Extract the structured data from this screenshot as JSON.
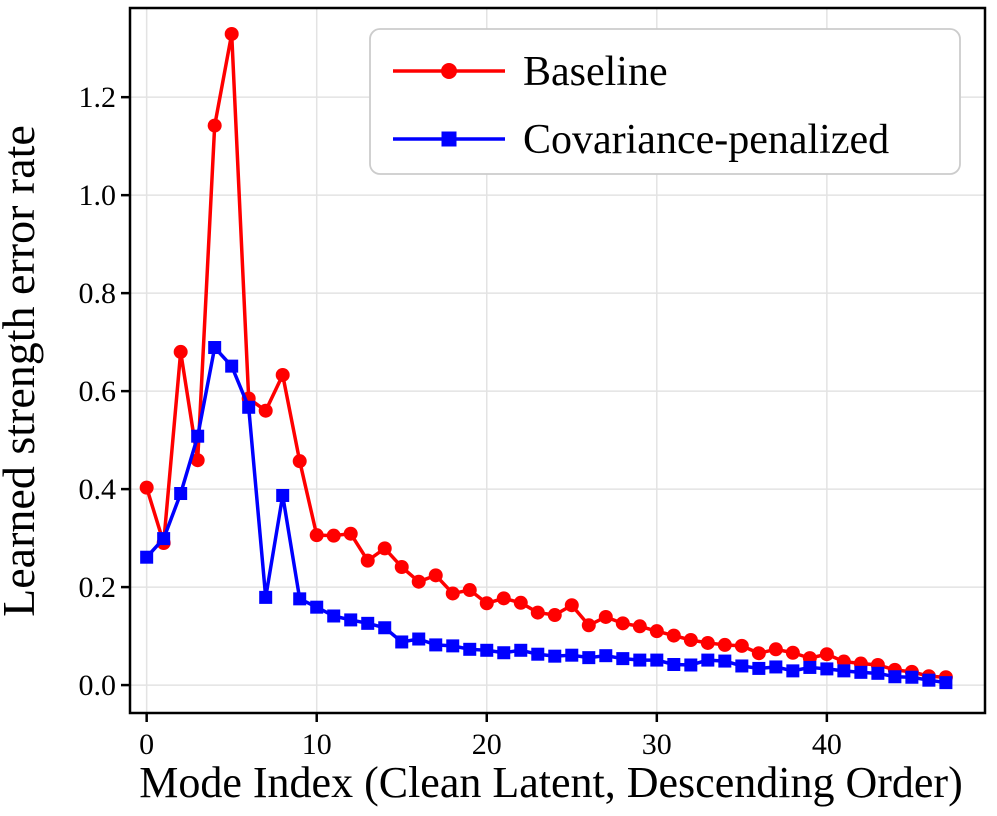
{
  "chart_data": {
    "type": "line",
    "title": "",
    "xlabel": "Mode Index (Clean Latent, Descending Order)",
    "ylabel": "Learned strength error rate",
    "x": [
      0,
      1,
      2,
      3,
      4,
      5,
      6,
      7,
      8,
      9,
      10,
      11,
      12,
      13,
      14,
      15,
      16,
      17,
      18,
      19,
      20,
      21,
      22,
      23,
      24,
      25,
      26,
      27,
      28,
      29,
      30,
      31,
      32,
      33,
      34,
      35,
      36,
      37,
      38,
      39,
      40,
      41,
      42,
      43,
      44,
      45,
      46,
      47
    ],
    "series": [
      {
        "name": "Baseline",
        "color": "#ff0000",
        "marker": "circle",
        "values": [
          0.403,
          0.29,
          0.68,
          0.459,
          1.142,
          1.329,
          0.585,
          0.56,
          0.633,
          0.457,
          0.306,
          0.305,
          0.309,
          0.254,
          0.279,
          0.241,
          0.211,
          0.224,
          0.187,
          0.194,
          0.167,
          0.177,
          0.168,
          0.148,
          0.143,
          0.163,
          0.122,
          0.139,
          0.126,
          0.12,
          0.11,
          0.101,
          0.092,
          0.086,
          0.082,
          0.08,
          0.065,
          0.073,
          0.066,
          0.055,
          0.063,
          0.048,
          0.044,
          0.041,
          0.031,
          0.027,
          0.018,
          0.016
        ]
      },
      {
        "name": "Covariance-penalized",
        "color": "#0000ff",
        "marker": "square",
        "values": [
          0.261,
          0.299,
          0.391,
          0.508,
          0.689,
          0.651,
          0.567,
          0.179,
          0.387,
          0.176,
          0.159,
          0.141,
          0.133,
          0.126,
          0.117,
          0.088,
          0.094,
          0.082,
          0.08,
          0.073,
          0.071,
          0.066,
          0.071,
          0.063,
          0.059,
          0.061,
          0.056,
          0.06,
          0.054,
          0.051,
          0.051,
          0.042,
          0.041,
          0.051,
          0.049,
          0.039,
          0.034,
          0.037,
          0.029,
          0.036,
          0.033,
          0.029,
          0.026,
          0.024,
          0.017,
          0.016,
          0.01,
          0.005
        ]
      }
    ],
    "xlim": [
      -0.98,
      49.3
    ],
    "ylim": [
      -0.057,
      1.382
    ],
    "xticks": [
      0,
      10,
      20,
      30,
      40
    ],
    "yticks": [
      0.0,
      0.2,
      0.4,
      0.6,
      0.8,
      1.0,
      1.2
    ],
    "yticklabels": [
      "0.0",
      "0.2",
      "0.4",
      "0.6",
      "0.8",
      "1.0",
      "1.2"
    ],
    "grid": true,
    "legend_position": "upper right"
  },
  "colors": {
    "background": "#ffffff",
    "grid": "#e3e3e3",
    "axis": "#000000",
    "legend_border": "#cccccc",
    "baseline": "#ff0000",
    "covariance_penalized": "#0000ff"
  }
}
